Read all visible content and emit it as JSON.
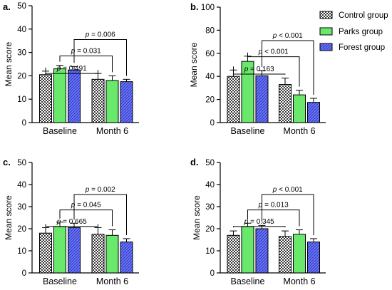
{
  "legend": {
    "items": [
      {
        "label": "Control group",
        "pattern": "checker",
        "color": "#888888"
      },
      {
        "label": "Parks group",
        "pattern": "solid",
        "color": "#69e86b"
      },
      {
        "label": "Forest group",
        "pattern": "hatch",
        "color": "#5560ee"
      }
    ]
  },
  "chart_data": [
    {
      "type": "bar",
      "panel": "a.",
      "categories": [
        "Baseline",
        "Month 6"
      ],
      "ylabel": "Mean score",
      "ylim": [
        0,
        50
      ],
      "yticks": [
        0,
        10,
        20,
        30,
        40,
        50
      ],
      "series": [
        {
          "name": "Control group",
          "values": [
            20.5,
            18.5
          ],
          "errors": [
            1.5,
            2.5
          ]
        },
        {
          "name": "Parks group",
          "values": [
            23,
            18
          ],
          "errors": [
            1.5,
            2.0
          ]
        },
        {
          "name": "Forest group",
          "values": [
            22.5,
            17.5
          ],
          "errors": [
            1.5,
            1.0
          ]
        }
      ],
      "annotations": [
        {
          "label": "p = 0.491",
          "from": [
            0,
            0
          ],
          "to": [
            1,
            0
          ]
        },
        {
          "label": "p = 0.031",
          "from": [
            0,
            1
          ],
          "to": [
            1,
            1
          ]
        },
        {
          "label": "p = 0.006",
          "from": [
            0,
            2
          ],
          "to": [
            1,
            2
          ]
        }
      ]
    },
    {
      "type": "bar",
      "panel": "b.",
      "categories": [
        "Baseline",
        "Month 6"
      ],
      "ylabel": "Mean score",
      "ylim": [
        0,
        100
      ],
      "yticks": [
        0,
        20,
        40,
        60,
        80,
        100
      ],
      "series": [
        {
          "name": "Control group",
          "values": [
            40,
            33
          ],
          "errors": [
            5.5,
            5.5
          ]
        },
        {
          "name": "Parks group",
          "values": [
            53,
            24
          ],
          "errors": [
            4.5,
            4.0
          ]
        },
        {
          "name": "Forest group",
          "values": [
            40.5,
            17.5
          ],
          "errors": [
            4.5,
            3.5
          ]
        }
      ],
      "annotations": [
        {
          "label": "p = 0.163",
          "from": [
            0,
            0
          ],
          "to": [
            1,
            0
          ]
        },
        {
          "label": "p < 0.001",
          "from": [
            0,
            1
          ],
          "to": [
            1,
            1
          ]
        },
        {
          "label": "p < 0.001",
          "from": [
            0,
            2
          ],
          "to": [
            1,
            2
          ]
        }
      ]
    },
    {
      "type": "bar",
      "panel": "c.",
      "categories": [
        "Baseline",
        "Month 6"
      ],
      "ylabel": "Mean score",
      "ylim": [
        0,
        50
      ],
      "yticks": [
        0,
        10,
        20,
        30,
        40,
        50
      ],
      "series": [
        {
          "name": "Control group",
          "values": [
            18,
            17.5
          ],
          "errors": [
            2.5,
            3.0
          ]
        },
        {
          "name": "Parks group",
          "values": [
            21,
            17
          ],
          "errors": [
            2.0,
            2.5
          ]
        },
        {
          "name": "Forest group",
          "values": [
            20.5,
            14
          ],
          "errors": [
            2.0,
            1.5
          ]
        }
      ],
      "annotations": [
        {
          "label": "p = 0.665",
          "from": [
            0,
            0
          ],
          "to": [
            1,
            0
          ]
        },
        {
          "label": "p = 0.045",
          "from": [
            0,
            1
          ],
          "to": [
            1,
            1
          ]
        },
        {
          "label": "p = 0.002",
          "from": [
            0,
            2
          ],
          "to": [
            1,
            2
          ]
        }
      ]
    },
    {
      "type": "bar",
      "panel": "d.",
      "categories": [
        "Baseline",
        "Month 6"
      ],
      "ylabel": "Mean score",
      "ylim": [
        0,
        50
      ],
      "yticks": [
        0,
        10,
        20,
        30,
        40,
        50
      ],
      "series": [
        {
          "name": "Control group",
          "values": [
            17,
            16.5
          ],
          "errors": [
            2.0,
            2.5
          ]
        },
        {
          "name": "Parks group",
          "values": [
            21,
            17.5
          ],
          "errors": [
            1.5,
            2.0
          ]
        },
        {
          "name": "Forest group",
          "values": [
            20,
            14
          ],
          "errors": [
            1.5,
            1.5
          ]
        }
      ],
      "annotations": [
        {
          "label": "p = 0.345",
          "from": [
            0,
            0
          ],
          "to": [
            1,
            0
          ]
        },
        {
          "label": "p = 0.013",
          "from": [
            0,
            1
          ],
          "to": [
            1,
            1
          ]
        },
        {
          "label": "p < 0.001",
          "from": [
            0,
            2
          ],
          "to": [
            1,
            2
          ]
        }
      ]
    }
  ]
}
